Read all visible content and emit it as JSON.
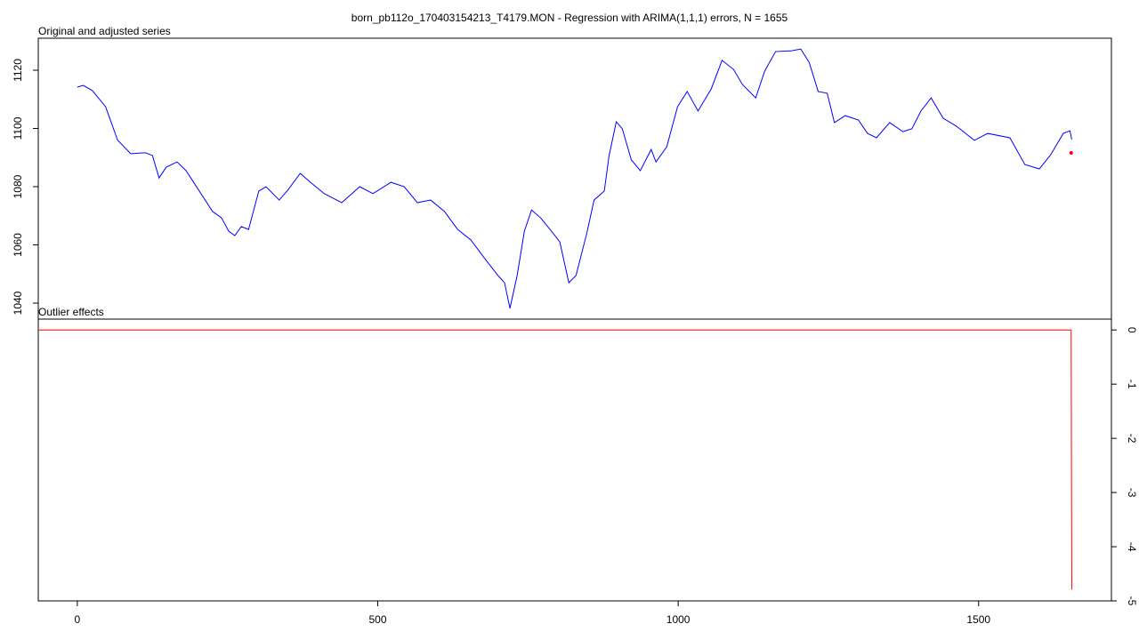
{
  "title": "born_pb112o_170403154213_T4179.MON - Regression with ARIMA(1,1,1) errors, N = 1655",
  "chart_data": [
    {
      "type": "line",
      "title": "Original and adjusted series",
      "xlim": [
        -65,
        1721
      ],
      "ylim": [
        1034.5,
        1131
      ],
      "yticks": [
        1040,
        1060,
        1080,
        1100,
        1120
      ],
      "y_axis_side": "left",
      "series": [
        {
          "color": "#0000ff",
          "style": "line",
          "x": [
            0,
            10,
            25,
            47,
            67,
            89,
            107,
            114,
            125,
            136,
            148,
            166,
            181,
            203,
            225,
            240,
            252,
            262,
            273,
            285,
            302,
            314,
            336,
            351,
            371,
            388,
            411,
            440,
            470,
            492,
            522,
            544,
            566,
            588,
            611,
            633,
            655,
            677,
            700,
            711,
            720,
            732,
            744,
            756,
            771,
            789,
            803,
            818,
            830,
            848,
            860,
            877,
            885,
            897,
            907,
            922,
            937,
            955,
            963,
            981,
            999,
            1015,
            1033,
            1055,
            1073,
            1092,
            1107,
            1129,
            1144,
            1162,
            1189,
            1204,
            1218,
            1233,
            1248,
            1260,
            1278,
            1300,
            1315,
            1330,
            1352,
            1374,
            1389,
            1404,
            1421,
            1441,
            1463,
            1493,
            1515,
            1552,
            1577,
            1601,
            1619,
            1641,
            1652,
            1655
          ],
          "values": [
            1114.2,
            1114.8,
            1113,
            1107.5,
            1096,
            1091.3,
            1091.6,
            1091.6,
            1090.7,
            1083,
            1086.7,
            1088.5,
            1085.5,
            1078.5,
            1071.5,
            1069.3,
            1064.7,
            1063.2,
            1066.3,
            1065.3,
            1078.5,
            1080,
            1075.4,
            1079,
            1084.6,
            1081.5,
            1077.6,
            1074.5,
            1080,
            1077.6,
            1081.5,
            1080,
            1074.5,
            1075.4,
            1071.5,
            1065.3,
            1061.7,
            1055.6,
            1049.5,
            1047,
            1038.2,
            1049.5,
            1064.7,
            1072,
            1069.3,
            1064.7,
            1061,
            1047,
            1049.5,
            1064.1,
            1075.4,
            1078.5,
            1090.7,
            1102.3,
            1099.9,
            1089.2,
            1085.5,
            1092.8,
            1088.5,
            1093.7,
            1107.5,
            1112.7,
            1106,
            1113.6,
            1123.4,
            1120.3,
            1115.1,
            1110.5,
            1119.7,
            1126.4,
            1126.7,
            1127.3,
            1122.7,
            1112.7,
            1112.1,
            1102,
            1104.4,
            1102.9,
            1098.3,
            1096.8,
            1102,
            1098.9,
            1099.9,
            1106,
            1110.5,
            1103.5,
            1100.8,
            1095.9,
            1098.3,
            1096.8,
            1087.6,
            1086.1,
            1090.7,
            1098.3,
            1099.2,
            1096.2
          ]
        },
        {
          "color": "#ff0000",
          "style": "point",
          "x": [
            1654
          ],
          "values": [
            1091.6
          ]
        }
      ]
    },
    {
      "type": "line",
      "title": "Outlier effects",
      "xlim": [
        -65,
        1721
      ],
      "xticks": [
        0,
        500,
        1000,
        1500
      ],
      "ylim": [
        -5,
        0.2
      ],
      "yticks": [
        0,
        -1,
        -2,
        -3,
        -4,
        -5
      ],
      "y_axis_side": "right",
      "series": [
        {
          "color": "#ff0000",
          "style": "line",
          "x": [
            -65,
            1654,
            1655
          ],
          "values": [
            0,
            0,
            -4.79
          ]
        }
      ]
    }
  ]
}
